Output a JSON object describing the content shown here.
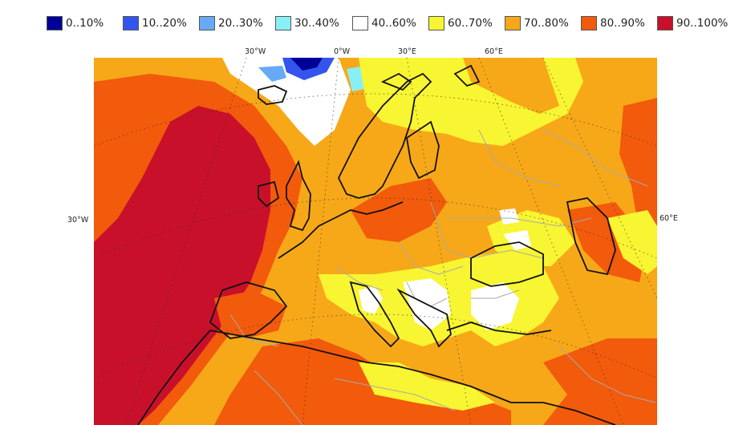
{
  "legend": {
    "items": [
      {
        "label": "0..10%",
        "color": "#000099"
      },
      {
        "label": "10..20%",
        "color": "#3355ee"
      },
      {
        "label": "20..30%",
        "color": "#66aaf5"
      },
      {
        "label": "30..40%",
        "color": "#88f0f5"
      },
      {
        "label": "40..60%",
        "color": "#ffffff"
      },
      {
        "label": "60..70%",
        "color": "#f8f532"
      },
      {
        "label": "70..80%",
        "color": "#f7a818"
      },
      {
        "label": "80..90%",
        "color": "#f25a0c"
      },
      {
        "label": "90..100%",
        "color": "#c8102a"
      }
    ]
  },
  "map": {
    "top_labels": [
      "30°W",
      "0°W",
      "30°E",
      "60°E"
    ],
    "left_label": "30°W",
    "right_label": "60°E"
  }
}
